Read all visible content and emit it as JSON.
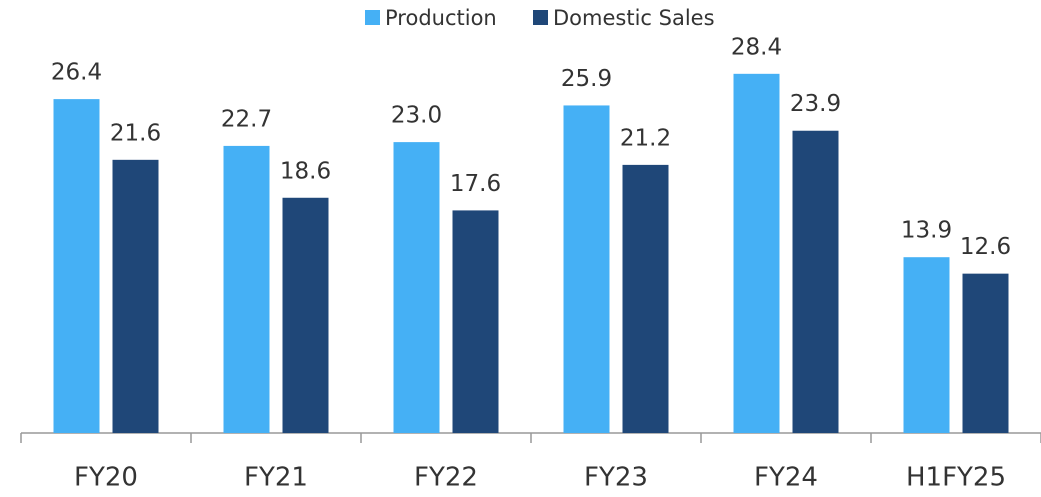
{
  "chart_data": {
    "type": "bar",
    "categories": [
      "FY20",
      "FY21",
      "FY22",
      "FY23",
      "FY24",
      "H1FY25"
    ],
    "series": [
      {
        "name": "Production",
        "color": "#45b0f5",
        "values": [
          26.4,
          22.7,
          23,
          25.9,
          28.4,
          13.9
        ],
        "value_labels": [
          "26.4",
          "22.7",
          "23.0",
          "25.9",
          "28.4",
          "13.9"
        ]
      },
      {
        "name": "Domestic Sales",
        "color": "#1f4778",
        "values": [
          21.6,
          18.6,
          17.6,
          21.2,
          23.9,
          12.6
        ],
        "value_labels": [
          "21.6",
          "18.6",
          "17.6",
          "21.2",
          "23.9",
          "12.6"
        ]
      }
    ],
    "ylim": [
      0,
      34
    ],
    "legend": "top"
  }
}
